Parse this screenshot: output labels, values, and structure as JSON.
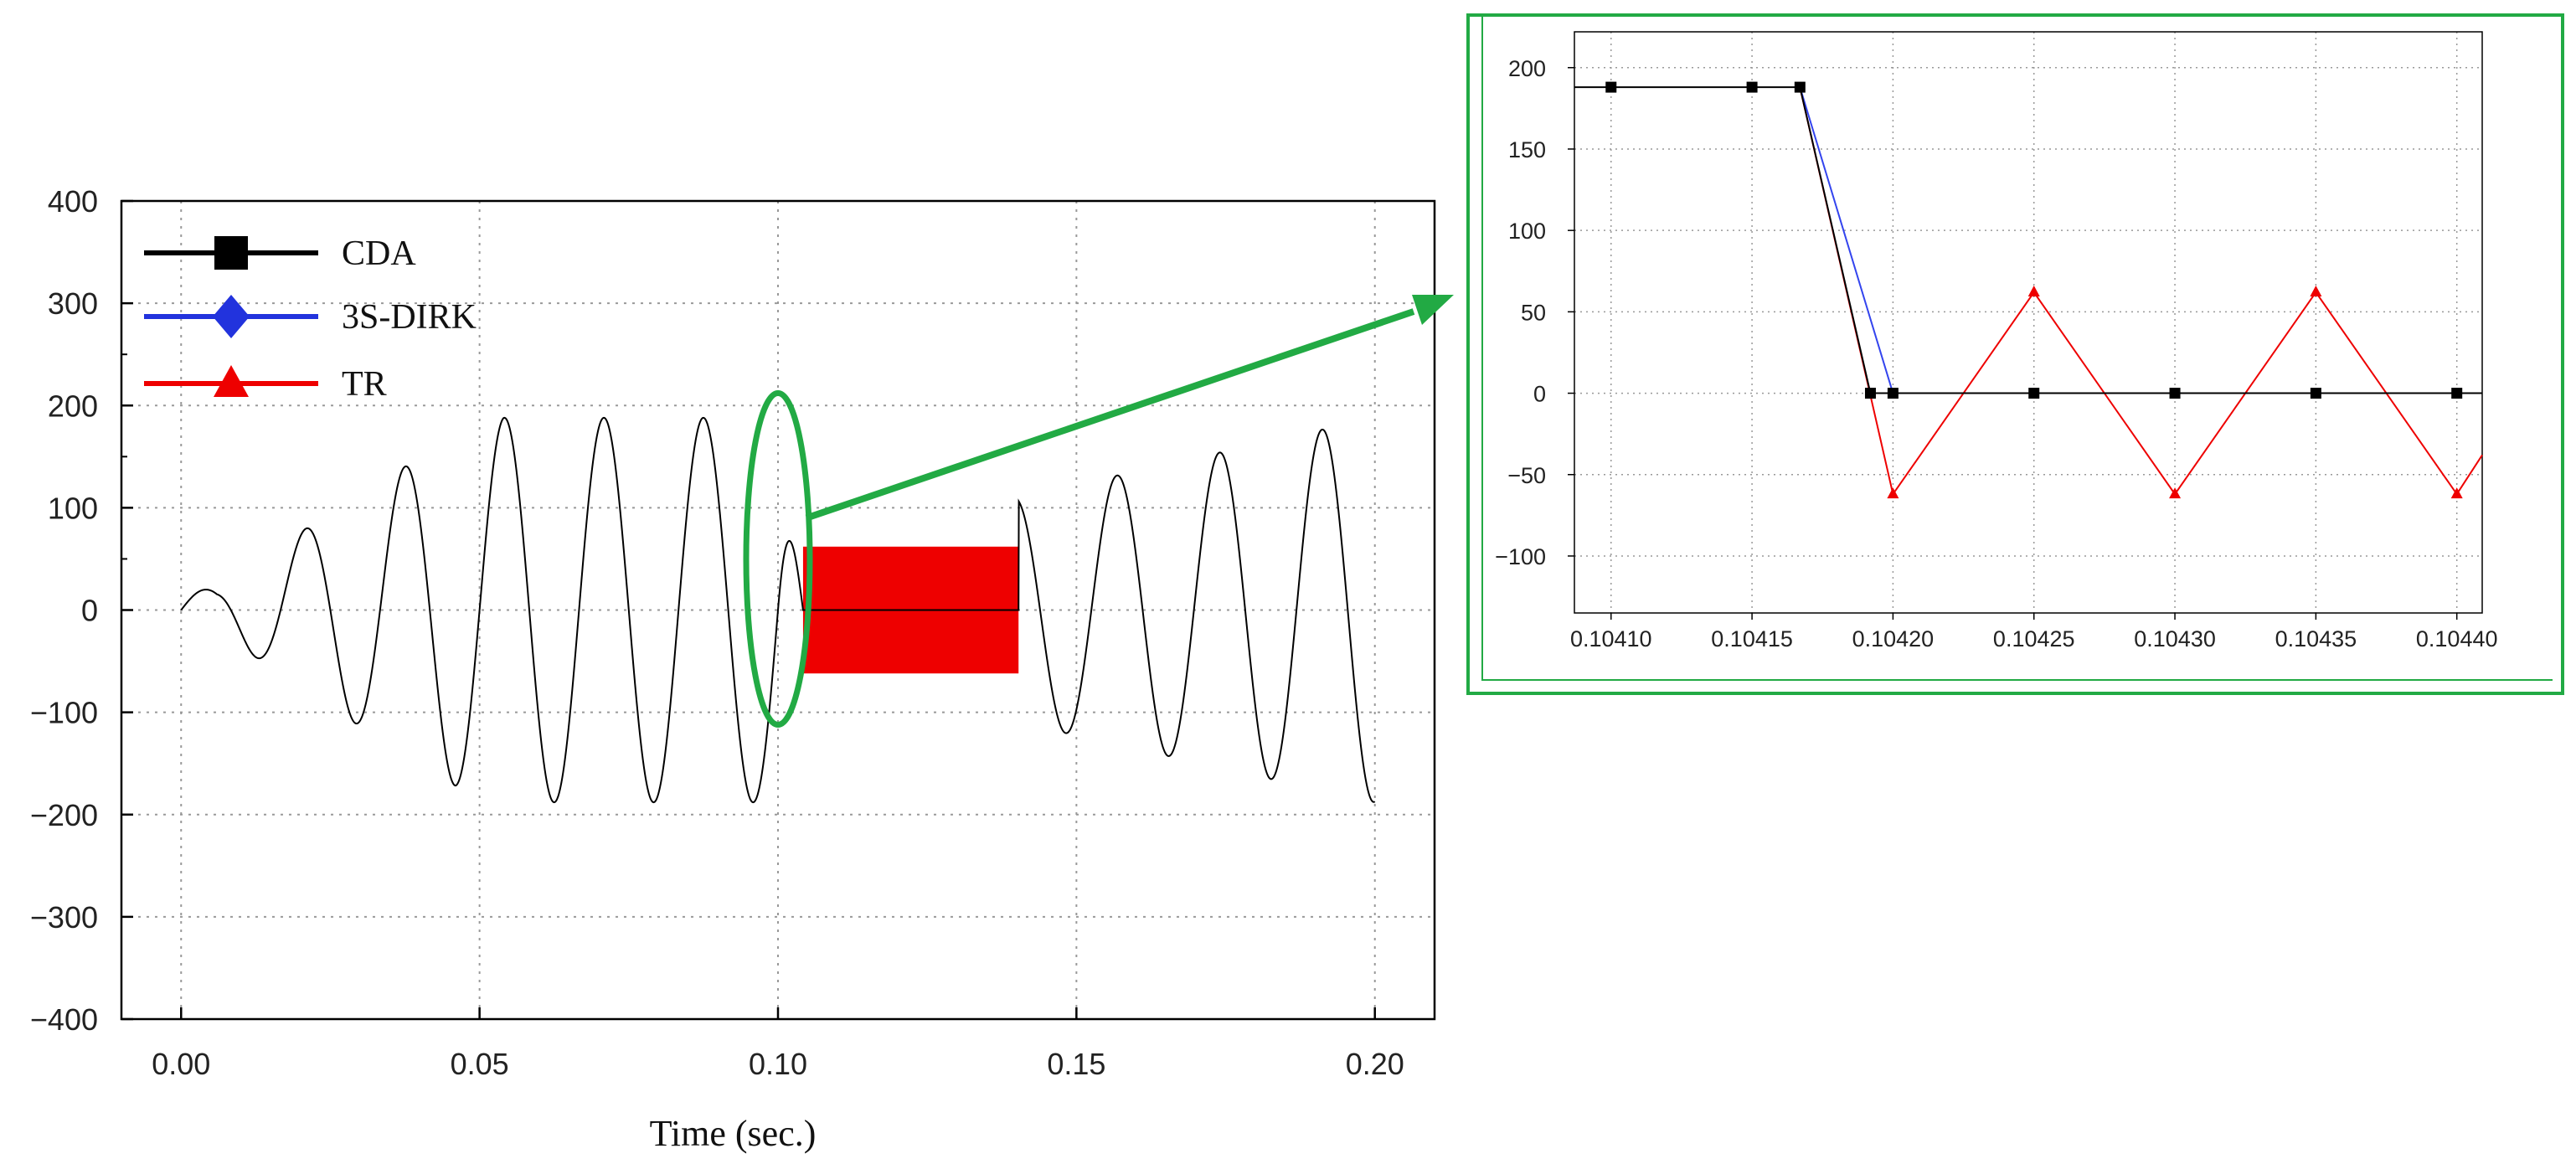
{
  "chart_data": [
    {
      "type": "line",
      "title": "",
      "xlabel": "Time (sec.)",
      "ylabel": "",
      "xlim": [
        -0.01,
        0.21
      ],
      "ylim": [
        -400,
        400
      ],
      "grid": true,
      "legend_position": "top-left",
      "x_ticks": [
        "0.00",
        "0.05",
        "0.10",
        "0.15",
        "0.20"
      ],
      "x_tick_values": [
        0.0,
        0.05,
        0.1,
        0.15,
        0.2
      ],
      "y_ticks": [
        "400",
        "300",
        "200",
        "100",
        "0",
        "−100",
        "−200",
        "−300",
        "−400"
      ],
      "y_tick_values": [
        400,
        300,
        200,
        100,
        0,
        -100,
        -200,
        -300,
        -400
      ],
      "legend": [
        {
          "name": "CDA",
          "color": "#000000",
          "marker": "square"
        },
        {
          "name": "3S-DIRK",
          "color": "#2233dd",
          "marker": "diamond"
        },
        {
          "name": "TR",
          "color": "#ee0000",
          "marker": "triangle"
        }
      ],
      "series": [
        {
          "name": "CDA",
          "color": "#000000",
          "frequency_hz": 60,
          "envelope": [
            [
              0.0,
              20
            ],
            [
              0.006,
              20
            ],
            [
              0.021,
              80
            ],
            [
              0.029,
              110
            ],
            [
              0.038,
              142
            ],
            [
              0.046,
              172
            ],
            [
              0.054,
              188
            ],
            [
              0.1,
              188
            ],
            [
              0.1042,
              0
            ],
            [
              0.1403,
              0
            ],
            [
              0.1403,
              110
            ],
            [
              0.2,
              188
            ]
          ],
          "x_end": 0.2
        },
        {
          "name": "TR",
          "color": "#ee0000",
          "oscillation_band": [
            0.1042,
            0.1403
          ],
          "band_range": [
            -62,
            62
          ]
        }
      ],
      "zoom_region": {
        "x": 0.1,
        "y": 50
      }
    },
    {
      "type": "line",
      "title": "",
      "xlabel": "",
      "ylabel": "",
      "xlim": [
        0.104087,
        0.104409
      ],
      "ylim": [
        -135,
        222
      ],
      "grid": true,
      "x_ticks": [
        "0.10410",
        "0.10415",
        "0.10420",
        "0.10425",
        "0.10430",
        "0.10435",
        "0.10440"
      ],
      "x_tick_values": [
        0.1041,
        0.10415,
        0.1042,
        0.10425,
        0.1043,
        0.10435,
        0.1044
      ],
      "y_ticks": [
        "200",
        "150",
        "100",
        "50",
        "0",
        "−50",
        "−100"
      ],
      "y_tick_values": [
        200,
        150,
        100,
        50,
        0,
        -50,
        -100
      ],
      "series": [
        {
          "name": "CDA",
          "color": "#000000",
          "x": [
            0.104087,
            0.1041,
            0.10415,
            0.104167,
            0.104192,
            0.1042,
            0.10425,
            0.1043,
            0.10435,
            0.1044,
            0.104409
          ],
          "y": [
            188,
            188,
            188,
            188,
            0,
            0,
            0,
            0,
            0,
            0,
            0
          ],
          "marker_indices": [
            1,
            2,
            3,
            4,
            5,
            6,
            7,
            8,
            9
          ]
        },
        {
          "name": "3S-DIRK",
          "color": "#3344ee",
          "x": [
            0.104167,
            0.1042
          ],
          "y": [
            188,
            0
          ]
        },
        {
          "name": "TR",
          "color": "#ee0000",
          "x": [
            0.104167,
            0.1042,
            0.10425,
            0.1043,
            0.10435,
            0.1044,
            0.104409
          ],
          "y": [
            188,
            -62,
            62,
            -62,
            62,
            -62,
            -38
          ],
          "marker_indices": [
            1,
            2,
            3,
            4,
            5
          ]
        }
      ]
    }
  ],
  "colors": {
    "callout": "#22aa44",
    "grid": "#999999"
  }
}
